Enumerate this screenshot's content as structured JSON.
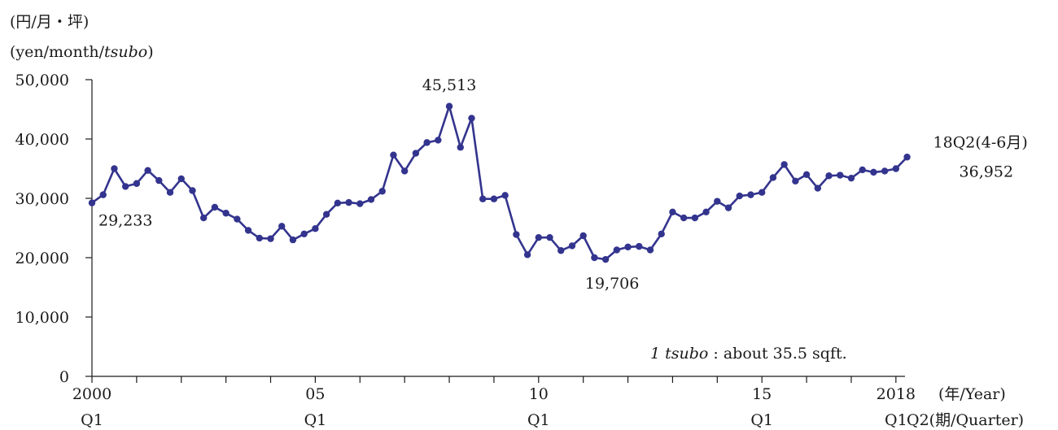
{
  "chart_data": {
    "type": "line",
    "unit_label_jp": "(円/月・坪)",
    "unit_label_en_prefix": "(yen/month/",
    "unit_label_en_italic": "tsubo",
    "unit_label_en_suffix": ")",
    "xlabel": "(年/Year)",
    "xlabel_quarter": "Q2(期/Quarter)",
    "ylim": [
      0,
      50000
    ],
    "y_ticks": [
      "0",
      "10,000",
      "20,000",
      "30,000",
      "40,000",
      "50,000"
    ],
    "x_tick_labels": [
      {
        "year": "2000",
        "quarter": "Q1",
        "index": 0
      },
      {
        "year": "05",
        "quarter": "Q1",
        "index": 20
      },
      {
        "year": "10",
        "quarter": "Q1",
        "index": 40
      },
      {
        "year": "15",
        "quarter": "Q1",
        "index": 60
      },
      {
        "year": "2018",
        "quarter": "Q1",
        "index": 72
      }
    ],
    "series": [
      {
        "color": "#33348e",
        "values": [
          29233,
          30600,
          35000,
          32000,
          32500,
          34700,
          33000,
          31000,
          33300,
          31300,
          26700,
          28500,
          27500,
          26500,
          24600,
          23300,
          23200,
          25300,
          23000,
          24000,
          24900,
          27300,
          29200,
          29300,
          29100,
          29800,
          31200,
          37300,
          34600,
          37600,
          39400,
          39800,
          45513,
          38600,
          43500,
          29900,
          29900,
          30500,
          23900,
          20500,
          23400,
          23400,
          21200,
          22000,
          23700,
          20000,
          19706,
          21300,
          21800,
          21900,
          21300,
          24000,
          27700,
          26700,
          26700,
          27700,
          29500,
          28400,
          30400,
          30600,
          31000,
          33500,
          35700,
          32900,
          34000,
          31700,
          33800,
          33900,
          33400,
          34800,
          34400,
          34600,
          35000,
          36952
        ]
      }
    ],
    "annotations": [
      {
        "text": "29,233",
        "index": 0
      },
      {
        "text": "45,513",
        "index": 32
      },
      {
        "text": "19,706",
        "index": 46
      },
      {
        "text": "18Q2(4-6月)",
        "index": 73
      },
      {
        "text": "36,952",
        "index": 73
      }
    ],
    "note_italic": "1 tsubo",
    "note_rest": " : about 35.5 sqft."
  }
}
